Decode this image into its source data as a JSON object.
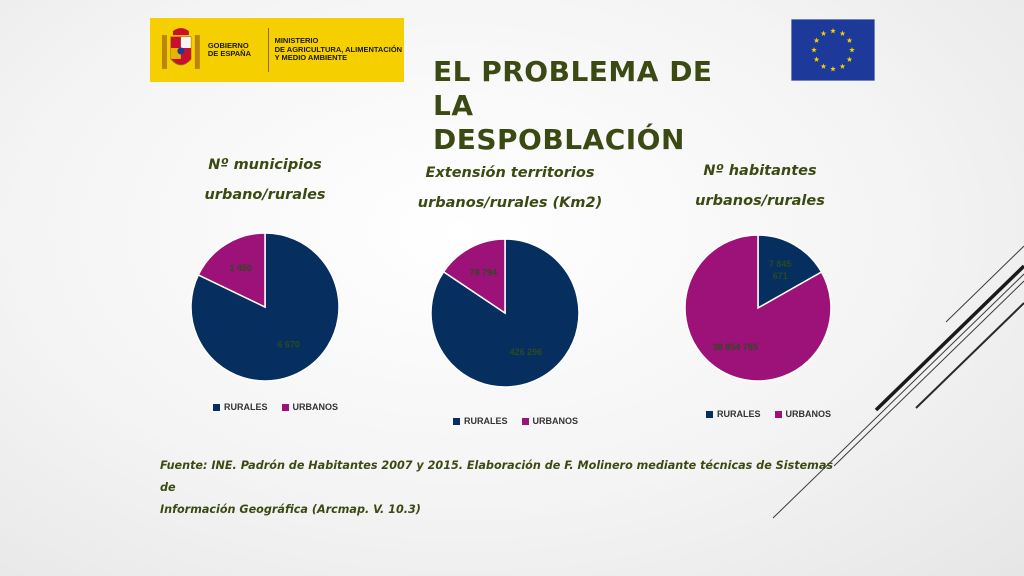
{
  "header": {
    "gov_line1": "GOBIERNO\nDE ESPAÑA",
    "gov_line2": "MINISTERIO\nDE AGRICULTURA, ALIMENTACIÓN\nY MEDIO AMBIENTE",
    "gov_color": "#f6cf00",
    "eu_flag_color": "#1d3a9a",
    "eu_star_color": "#f6cf00"
  },
  "title": "EL PROBLEMA DE LA\nDESPOBLACIÓN",
  "colors": {
    "rurales": "#062e5e",
    "urbanos": "#9c1279",
    "label": "#2c4a1e",
    "title": "#3b4a12"
  },
  "chart_data": [
    {
      "type": "pie",
      "title": "Nº municipios\nurbano/rurales",
      "categories": [
        "RURALES",
        "URBANOS"
      ],
      "values": [
        6670,
        1450
      ],
      "value_labels": [
        "6 670",
        "1 450"
      ],
      "legend": "bottom"
    },
    {
      "type": "pie",
      "title": "Extensión territorios\nurbanos/rurales (Km2)",
      "categories": [
        "RURALES",
        "URBANOS"
      ],
      "values": [
        426296,
        78794
      ],
      "value_labels": [
        "426 296",
        "78 794"
      ],
      "legend": "bottom"
    },
    {
      "type": "pie",
      "title": "Nº habitantes\nurbanos/rurales",
      "categories": [
        "RURALES",
        "URBANOS"
      ],
      "values": [
        7845671,
        38854755
      ],
      "value_labels": [
        "7 845\n671",
        "38 854 755"
      ],
      "legend": "bottom"
    }
  ],
  "source": "Fuente: INE. Padrón de Habitantes 2007 y 2015. Elaboración de F. Molinero mediante técnicas de Sistemas de\nInformación Geográfica (Arcmap. V. 10.3)"
}
